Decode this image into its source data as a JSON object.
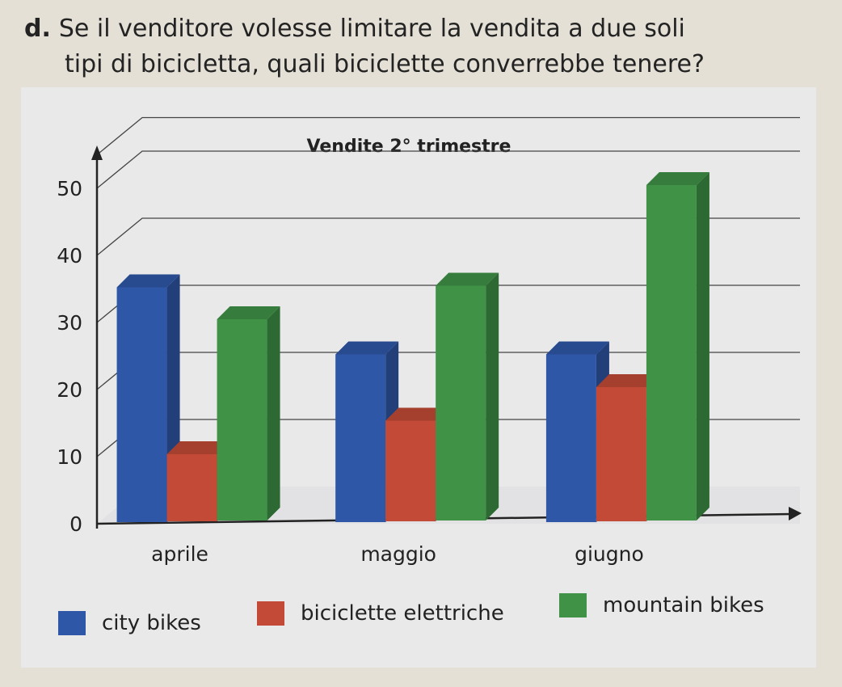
{
  "question": {
    "letter": "d.",
    "line1": "Se il venditore volesse limitare la vendita a due soli",
    "line2": "tipi di bicicletta, quali biciclette converrebbe tenere?"
  },
  "chart_data": {
    "type": "bar",
    "title": "Vendite 2° trimestre",
    "categories": [
      "aprile",
      "maggio",
      "giugno"
    ],
    "series": [
      {
        "name": "city bikes",
        "values": [
          35,
          25,
          25
        ],
        "color": "#2f57a8"
      },
      {
        "name": "biciclette elettriche",
        "values": [
          10,
          15,
          20
        ],
        "color": "#c24a36"
      },
      {
        "name": "mountain bikes",
        "values": [
          30,
          35,
          50
        ],
        "color": "#3f9246"
      }
    ],
    "y_ticks": [
      "0",
      "10",
      "20",
      "30",
      "40",
      "50"
    ],
    "ylim": [
      0,
      55
    ],
    "grid": true,
    "legend_position": "bottom"
  }
}
